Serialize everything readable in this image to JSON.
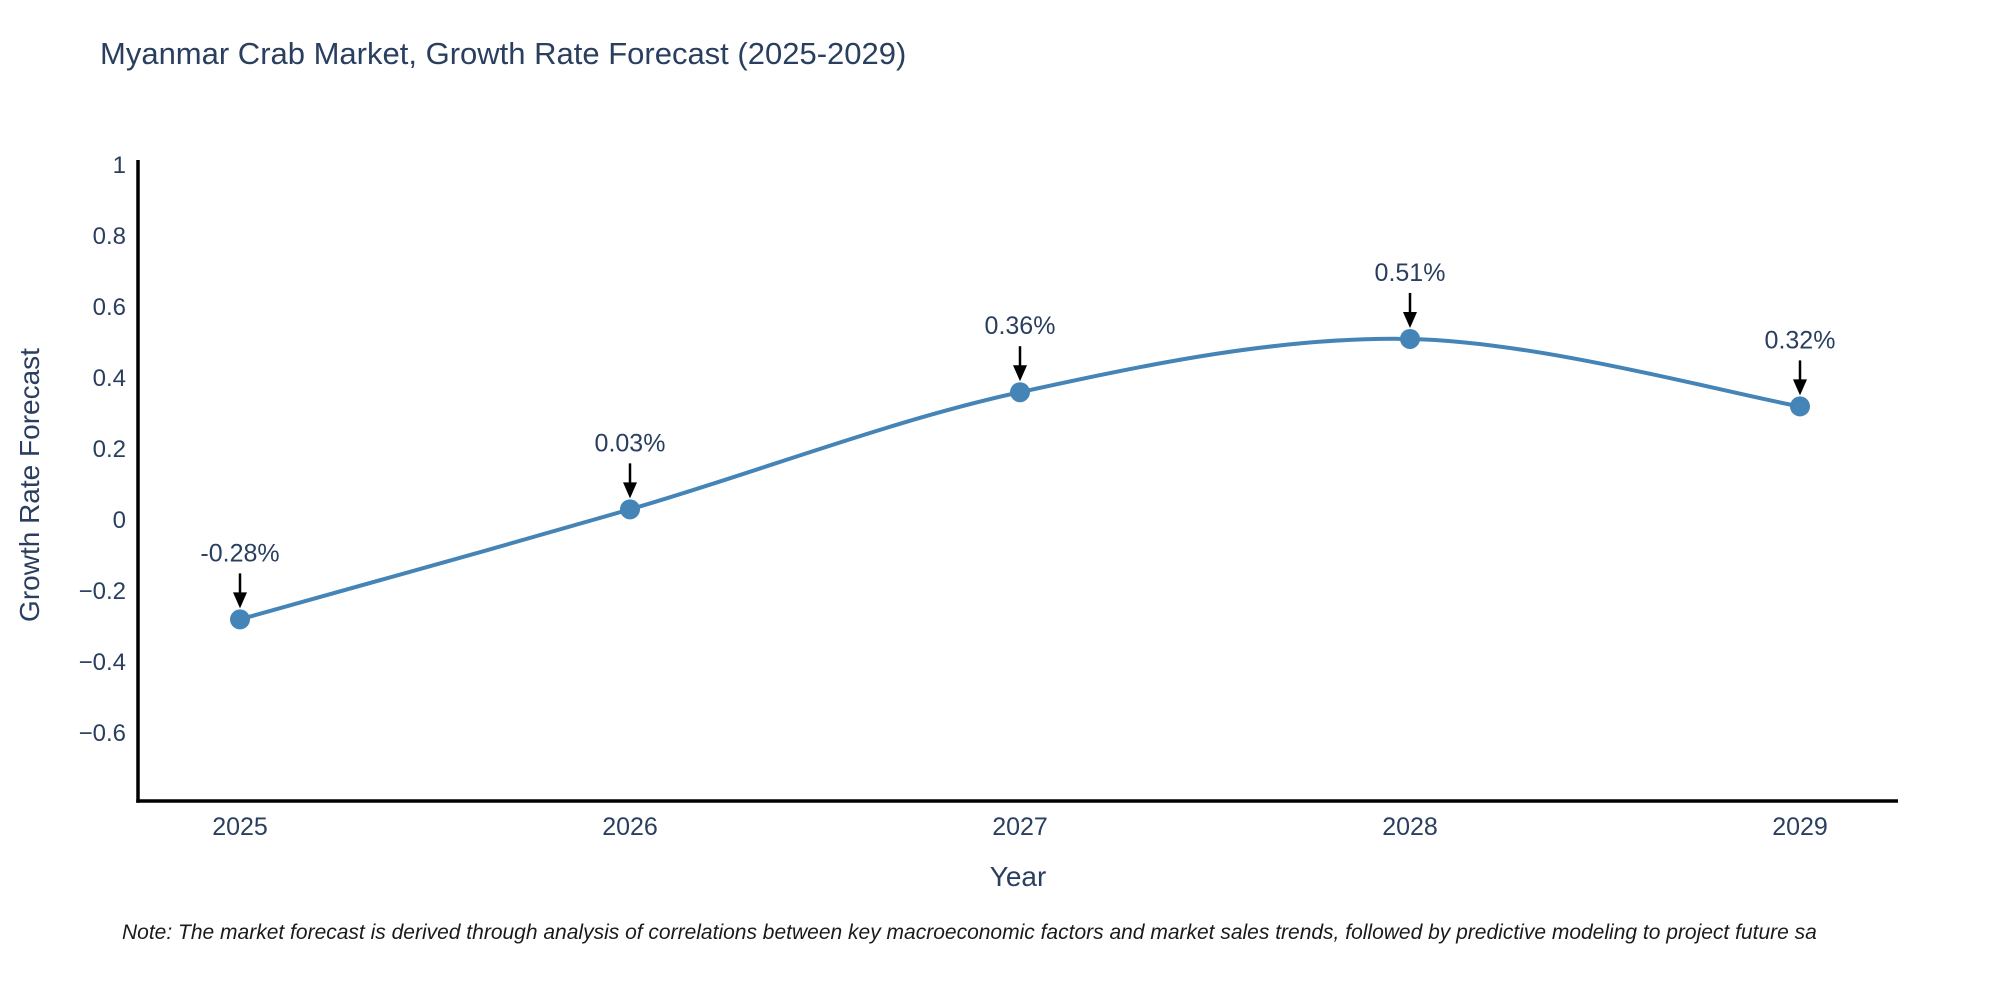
{
  "chart_data": {
    "type": "line",
    "title": "Myanmar Crab Market, Growth Rate Forecast (2025-2029)",
    "xlabel": "Year",
    "ylabel": "Growth Rate Forecast",
    "x": [
      2025,
      2026,
      2027,
      2028,
      2029
    ],
    "values": [
      -0.28,
      0.03,
      0.36,
      0.51,
      0.32
    ],
    "point_labels": [
      "-0.28%",
      "0.03%",
      "0.36%",
      "0.51%",
      "0.32%"
    ],
    "ytick_values": [
      1,
      0.8,
      0.6,
      0.4,
      0.2,
      0,
      -0.2,
      -0.4,
      -0.6
    ],
    "ytick_labels": [
      "1",
      "0.8",
      "0.6",
      "0.4",
      "0.2",
      "0",
      "−0.2",
      "−0.4",
      "−0.6"
    ],
    "ylim": [
      -0.79,
      1.01
    ],
    "grid": false,
    "legend": "none",
    "line_color": "#4484b7",
    "marker_color": "#4484b7",
    "arrow_color": "#000000",
    "axis_color": "#000000",
    "text_color": "#2a3f5f",
    "note": "Note: The market forecast is derived through analysis of correlations between key macroeconomic factors and market sales trends, followed by predictive modeling to project future sa"
  }
}
